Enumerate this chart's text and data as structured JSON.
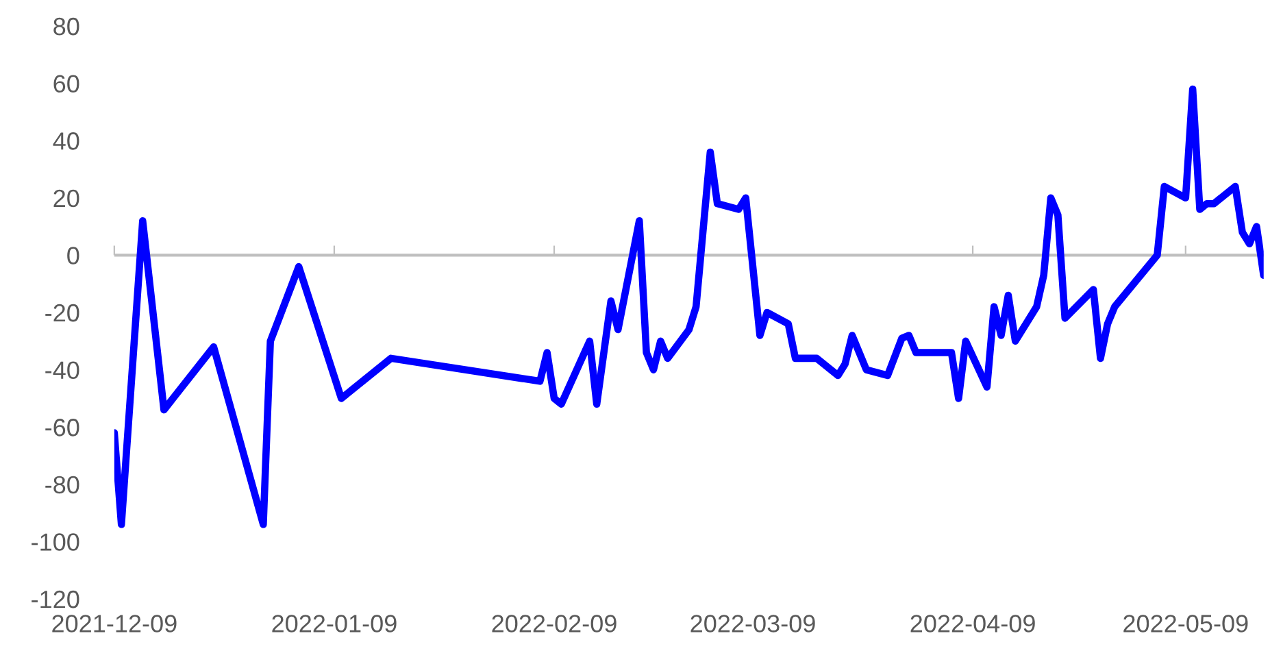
{
  "chart_data": {
    "type": "line",
    "grid": false,
    "legend": false,
    "marker": "none",
    "line_style": "solid",
    "x": [
      "2021-12-09",
      "2021-12-10",
      "2021-12-13",
      "2021-12-16",
      "2021-12-23",
      "2021-12-30",
      "2021-12-31",
      "2022-01-04",
      "2022-01-10",
      "2022-01-17",
      "2022-02-07",
      "2022-02-08",
      "2022-02-09",
      "2022-02-10",
      "2022-02-14",
      "2022-02-15",
      "2022-02-17",
      "2022-02-18",
      "2022-02-21",
      "2022-02-22",
      "2022-02-23",
      "2022-02-24",
      "2022-02-25",
      "2022-02-28",
      "2022-03-01",
      "2022-03-03",
      "2022-03-04",
      "2022-03-07",
      "2022-03-08",
      "2022-03-10",
      "2022-03-11",
      "2022-03-14",
      "2022-03-15",
      "2022-03-18",
      "2022-03-21",
      "2022-03-22",
      "2022-03-23",
      "2022-03-25",
      "2022-03-28",
      "2022-03-30",
      "2022-03-31",
      "2022-04-01",
      "2022-04-06",
      "2022-04-07",
      "2022-04-08",
      "2022-04-11",
      "2022-04-12",
      "2022-04-13",
      "2022-04-14",
      "2022-04-15",
      "2022-04-18",
      "2022-04-19",
      "2022-04-20",
      "2022-04-21",
      "2022-04-22",
      "2022-04-26",
      "2022-04-27",
      "2022-04-28",
      "2022-04-29",
      "2022-05-05",
      "2022-05-06",
      "2022-05-09",
      "2022-05-10",
      "2022-05-11",
      "2022-05-12",
      "2022-05-13",
      "2022-05-16",
      "2022-05-17",
      "2022-05-18",
      "2022-05-19",
      "2022-05-20"
    ],
    "series": [
      {
        "color": "#0000ff",
        "values": [
          -62,
          -94,
          12,
          -54,
          -32,
          -94,
          -30,
          -4,
          -50,
          -36,
          -44,
          -34,
          -50,
          -52,
          -30,
          -52,
          -16,
          -26,
          12,
          -34,
          -40,
          -30,
          -36,
          -26,
          -18,
          36,
          18,
          16,
          20,
          -28,
          -20,
          -24,
          -36,
          -36,
          -42,
          -38,
          -28,
          -40,
          -42,
          -29,
          -28,
          -34,
          -34,
          -50,
          -30,
          -46,
          -18,
          -28,
          -14,
          -30,
          -18,
          -7,
          20,
          14,
          -22,
          -12,
          -36,
          -24,
          -18,
          0,
          24,
          20,
          58,
          16,
          18,
          18,
          24,
          8,
          4,
          10,
          -7
        ]
      }
    ],
    "xlim": [
      "2021-12-09",
      "2022-05-20"
    ],
    "xticks": [
      "2021-12-09",
      "2022-01-09",
      "2022-02-09",
      "2022-03-09",
      "2022-04-09",
      "2022-05-09"
    ],
    "ref_lines": [
      {
        "axis": "y",
        "value": 0,
        "color": "#bfbfbf"
      }
    ],
    "ylim": [
      -120,
      80
    ],
    "yticks": [
      -120,
      -100,
      -80,
      -60,
      -40,
      -20,
      0,
      20,
      40,
      60,
      80
    ]
  }
}
